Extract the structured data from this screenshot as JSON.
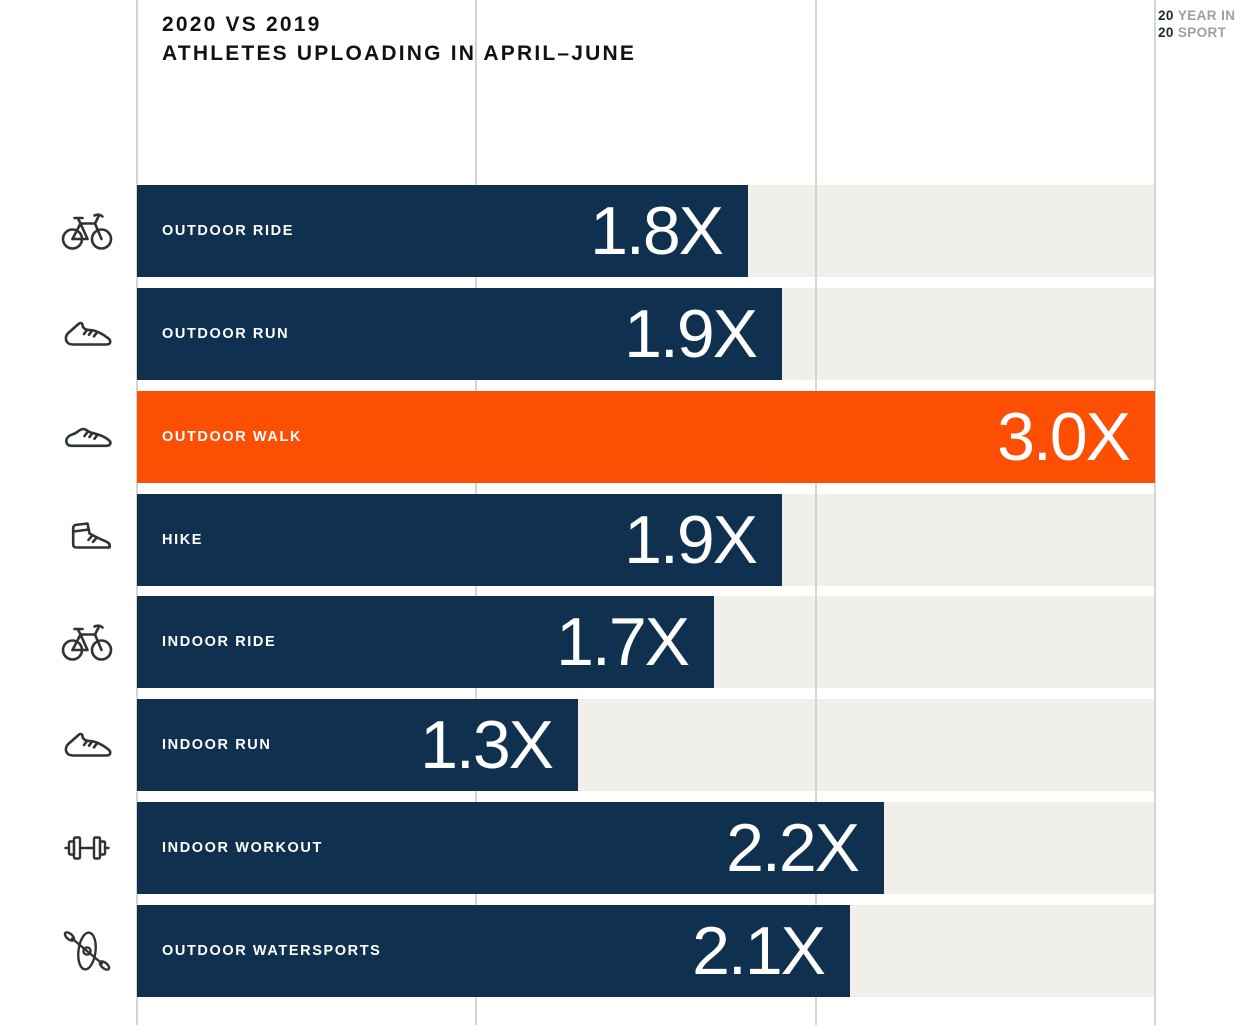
{
  "header": {
    "title_line1": "2020 VS 2019",
    "title_line2": "ATHLETES UPLOADING IN APRIL–JUNE"
  },
  "logo": {
    "line1_num": "20",
    "line1_text": "YEAR IN",
    "line2_num": "20",
    "line2_text": "SPORT"
  },
  "chart_data": {
    "type": "bar",
    "orientation": "horizontal",
    "title": "2020 VS 2019 ATHLETES UPLOADING IN APRIL–JUNE",
    "categories": [
      "OUTDOOR RIDE",
      "OUTDOOR RUN",
      "OUTDOOR WALK",
      "HIKE",
      "INDOOR RIDE",
      "INDOOR RUN",
      "INDOOR WORKOUT",
      "OUTDOOR WATERSPORTS"
    ],
    "values": [
      1.8,
      1.9,
      3.0,
      1.9,
      1.7,
      1.3,
      2.2,
      2.1
    ],
    "value_labels": [
      "1.8X",
      "1.9X",
      "3.0X",
      "1.9X",
      "1.7X",
      "1.3X",
      "2.2X",
      "2.1X"
    ],
    "icons": [
      "bike-icon",
      "run-shoe-icon",
      "walk-shoe-icon",
      "hike-boot-icon",
      "bike-icon",
      "run-shoe-icon",
      "dumbbell-icon",
      "kayak-icon"
    ],
    "highlight_index": 2,
    "xlim": [
      0,
      3
    ],
    "gridlines_x": [
      0,
      1,
      2,
      3
    ],
    "grid": true,
    "legend": "none",
    "colors": {
      "bar": "#0f304e",
      "highlight": "#fc4f03",
      "track": "#f0efe9",
      "gridline": "#cfd6d5",
      "bar_text": "#ffffff",
      "icon": "#2f3437"
    }
  }
}
